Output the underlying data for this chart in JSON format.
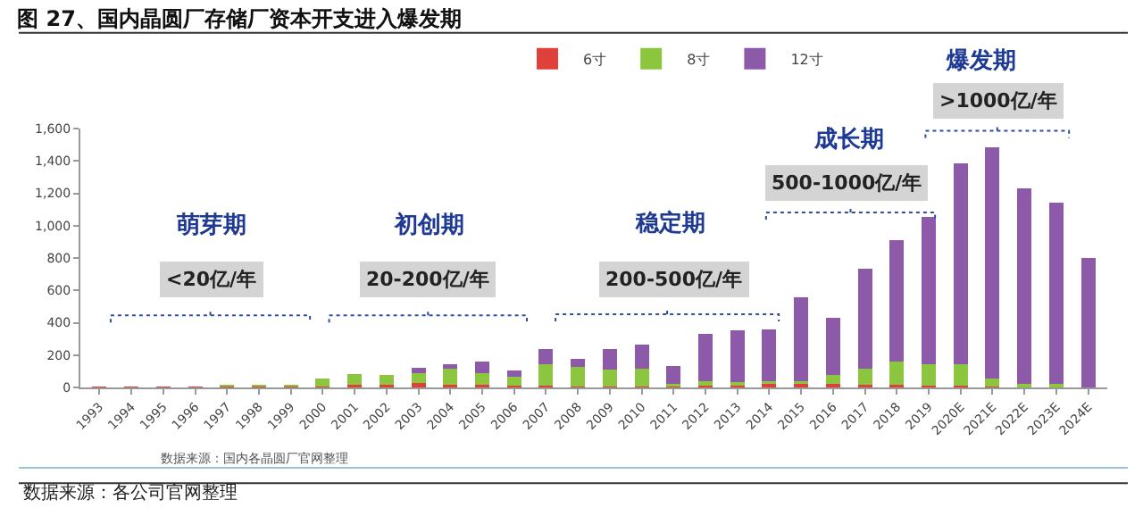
{
  "chart_data": {
    "type": "bar",
    "stacked": true,
    "title": "图 27、国内晶圆厂存储厂资本开支进入爆发期",
    "categories": [
      "1993",
      "1994",
      "1995",
      "1996",
      "1997",
      "1998",
      "1999",
      "2000",
      "2001",
      "2002",
      "2003",
      "2004",
      "2005",
      "2006",
      "2007",
      "2008",
      "2009",
      "2010",
      "2011",
      "2012",
      "2013",
      "2014",
      "2015",
      "2016",
      "2017",
      "2018",
      "2019",
      "2020E",
      "2021E",
      "2022E",
      "2023E",
      "2024E"
    ],
    "series": [
      {
        "name": "6寸",
        "color": "#e0403a",
        "values": [
          5,
          5,
          5,
          5,
          5,
          5,
          5,
          5,
          15,
          15,
          30,
          15,
          15,
          10,
          10,
          5,
          5,
          5,
          5,
          10,
          10,
          20,
          20,
          20,
          15,
          15,
          10,
          10,
          5,
          0,
          0,
          0
        ]
      },
      {
        "name": "8寸",
        "color": "#8cc63f",
        "values": [
          0,
          0,
          0,
          0,
          10,
          10,
          10,
          50,
          70,
          60,
          60,
          100,
          75,
          55,
          135,
          120,
          105,
          110,
          15,
          30,
          25,
          20,
          20,
          60,
          100,
          145,
          135,
          135,
          50,
          20,
          20,
          0
        ]
      },
      {
        "name": "12寸",
        "color": "#8c5aa8",
        "values": [
          0,
          0,
          0,
          0,
          0,
          0,
          0,
          0,
          0,
          0,
          30,
          30,
          70,
          40,
          90,
          50,
          130,
          150,
          110,
          290,
          320,
          320,
          520,
          350,
          620,
          750,
          910,
          1240,
          1430,
          1210,
          1120,
          800
        ]
      }
    ],
    "ylim": [
      0,
      1600
    ],
    "yticks": [
      0,
      {
        "value": 200,
        "label": "200"
      },
      {
        "value": 400,
        "label": "400"
      },
      {
        "value": 600,
        "label": "600"
      },
      {
        "value": 800,
        "label": "800"
      },
      {
        "value": 1000,
        "label": "1,000"
      },
      {
        "value": 1200,
        "label": "1,200"
      },
      {
        "value": 1400,
        "label": "1,400"
      },
      {
        "value": 1600,
        "label": "1,600"
      }
    ],
    "grid": false,
    "legend": "top",
    "annotations": [
      "萌芽期",
      "<20亿/年",
      "初创期",
      "20-200亿/年",
      "稳定期",
      "200-500亿/年",
      "成长期",
      "500-1000亿/年",
      "爆发期",
      ">1000亿/年",
      "数据来源：国内各晶圆厂官网整理",
      "数据来源：各公司官网整理"
    ]
  }
}
